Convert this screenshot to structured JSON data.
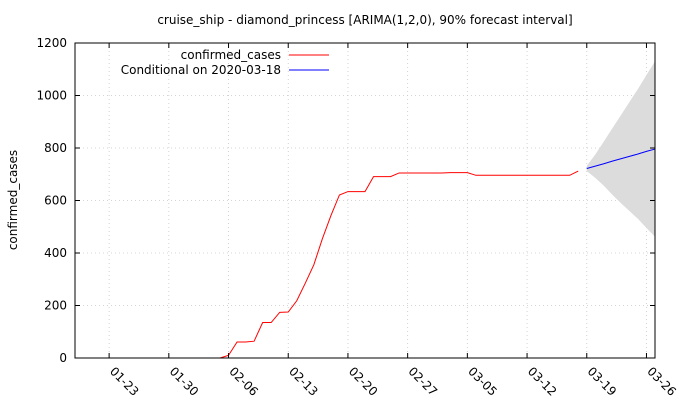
{
  "chart_data": {
    "type": "line",
    "title": "cruise_ship - diamond_princess [ARIMA(1,2,0), 90% forecast interval]",
    "xlabel": "",
    "ylabel": "confirmed_cases",
    "xlim": [
      "2020-01-19",
      "2020-03-27"
    ],
    "ylim": [
      0,
      1200
    ],
    "x_ticks": [
      "2020-01-23",
      "2020-01-30",
      "2020-02-06",
      "2020-02-13",
      "2020-02-20",
      "2020-02-27",
      "2020-03-05",
      "2020-03-12",
      "2020-03-19",
      "2020-03-26"
    ],
    "x_tick_labels": [
      "01-23",
      "01-30",
      "02-06",
      "02-13",
      "02-20",
      "02-27",
      "03-05",
      "03-12",
      "03-19",
      "03-26"
    ],
    "y_ticks": [
      0,
      200,
      400,
      600,
      800,
      1000,
      1200
    ],
    "y_tick_labels": [
      "0",
      "200",
      "400",
      "600",
      "800",
      "1000",
      "1200"
    ],
    "grid": true,
    "legend_position": "top-left",
    "series": [
      {
        "name": "confirmed_cases",
        "color": "#ff0000",
        "points": [
          [
            "2020-02-05",
            0
          ],
          [
            "2020-02-06",
            10
          ],
          [
            "2020-02-07",
            61
          ],
          [
            "2020-02-08",
            61
          ],
          [
            "2020-02-09",
            64
          ],
          [
            "2020-02-10",
            135
          ],
          [
            "2020-02-11",
            135
          ],
          [
            "2020-02-12",
            174
          ],
          [
            "2020-02-13",
            175
          ],
          [
            "2020-02-14",
            218
          ],
          [
            "2020-02-15",
            285
          ],
          [
            "2020-02-16",
            355
          ],
          [
            "2020-02-17",
            454
          ],
          [
            "2020-02-18",
            542
          ],
          [
            "2020-02-19",
            621
          ],
          [
            "2020-02-20",
            634
          ],
          [
            "2020-02-21",
            634
          ],
          [
            "2020-02-22",
            634
          ],
          [
            "2020-02-23",
            691
          ],
          [
            "2020-02-24",
            691
          ],
          [
            "2020-02-25",
            691
          ],
          [
            "2020-02-26",
            705
          ],
          [
            "2020-02-27",
            705
          ],
          [
            "2020-02-28",
            705
          ],
          [
            "2020-02-29",
            705
          ],
          [
            "2020-03-01",
            705
          ],
          [
            "2020-03-02",
            705
          ],
          [
            "2020-03-03",
            706
          ],
          [
            "2020-03-04",
            706
          ],
          [
            "2020-03-05",
            706
          ],
          [
            "2020-03-06",
            696
          ],
          [
            "2020-03-07",
            696
          ],
          [
            "2020-03-08",
            696
          ],
          [
            "2020-03-09",
            696
          ],
          [
            "2020-03-10",
            696
          ],
          [
            "2020-03-11",
            696
          ],
          [
            "2020-03-12",
            696
          ],
          [
            "2020-03-13",
            696
          ],
          [
            "2020-03-14",
            696
          ],
          [
            "2020-03-15",
            696
          ],
          [
            "2020-03-16",
            696
          ],
          [
            "2020-03-17",
            696
          ],
          [
            "2020-03-18",
            712
          ]
        ]
      },
      {
        "name": "Conditional on 2020-03-18",
        "color": "#0000ff",
        "points": [
          [
            "2020-03-19",
            722
          ],
          [
            "2020-03-20",
            731
          ],
          [
            "2020-03-21",
            740
          ],
          [
            "2020-03-22",
            750
          ],
          [
            "2020-03-23",
            759
          ],
          [
            "2020-03-24",
            768
          ],
          [
            "2020-03-25",
            777
          ],
          [
            "2020-03-26",
            787
          ],
          [
            "2020-03-27",
            796
          ]
        ]
      }
    ],
    "forecast_interval": {
      "level": "90%",
      "color": "#dcdcdc",
      "x": [
        "2020-03-19",
        "2020-03-20",
        "2020-03-21",
        "2020-03-22",
        "2020-03-23",
        "2020-03-24",
        "2020-03-25",
        "2020-03-26",
        "2020-03-27"
      ],
      "lower": [
        712,
        686,
        656,
        622,
        590,
        560,
        530,
        495,
        462
      ],
      "upper": [
        732,
        775,
        825,
        875,
        925,
        975,
        1025,
        1078,
        1130
      ]
    }
  }
}
